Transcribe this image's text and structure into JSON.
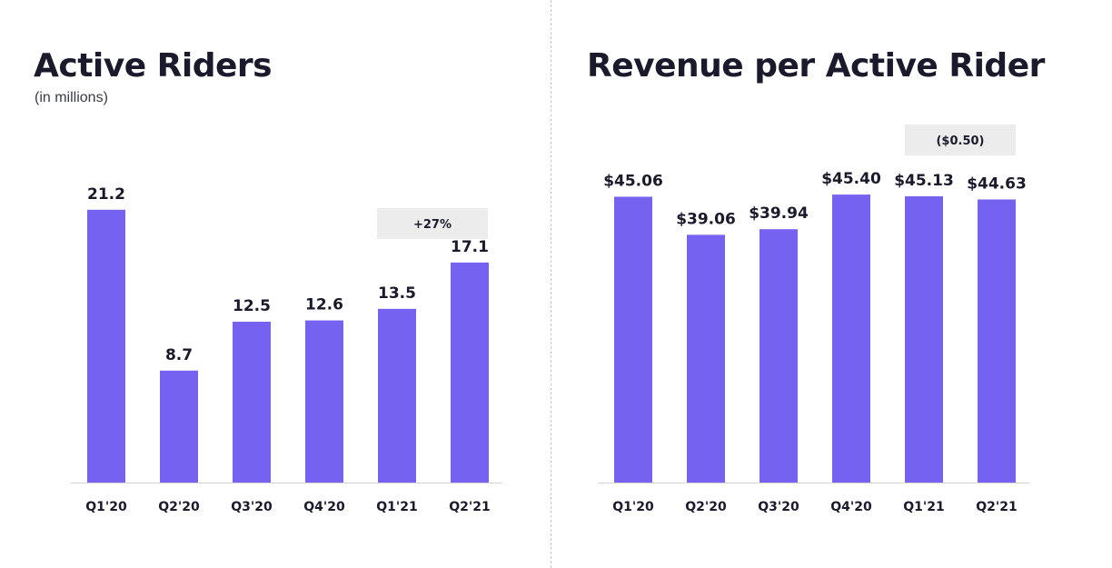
{
  "chart_data": [
    {
      "type": "bar",
      "title": "Active Riders",
      "subtitle": "(in millions)",
      "categories": [
        "Q1'20",
        "Q2'20",
        "Q3'20",
        "Q4'20",
        "Q1'21",
        "Q2'21"
      ],
      "values": [
        21.2,
        8.7,
        12.5,
        12.6,
        13.5,
        17.1
      ],
      "value_labels": [
        "21.2",
        "8.7",
        "12.5",
        "12.6",
        "13.5",
        "17.1"
      ],
      "ylim": [
        0,
        25
      ],
      "bar_color": "#7662f0",
      "grid": false,
      "annotation": {
        "text": "+27%",
        "category": "Q1'21 – Q2'21"
      }
    },
    {
      "type": "bar",
      "title": "Revenue per Active Rider",
      "categories": [
        "Q1'20",
        "Q2'20",
        "Q3'20",
        "Q4'20",
        "Q1'21",
        "Q2'21"
      ],
      "values": [
        45.06,
        39.06,
        39.94,
        45.4,
        45.13,
        44.63
      ],
      "value_labels": [
        "$45.06",
        "$39.06",
        "$39.94",
        "$45.40",
        "$45.13",
        "$44.63"
      ],
      "ylim": [
        0,
        50
      ],
      "bar_color": "#7662f0",
      "grid": false,
      "annotation": {
        "text": "($0.50)",
        "category": "Q1'21 – Q2'21"
      }
    }
  ]
}
